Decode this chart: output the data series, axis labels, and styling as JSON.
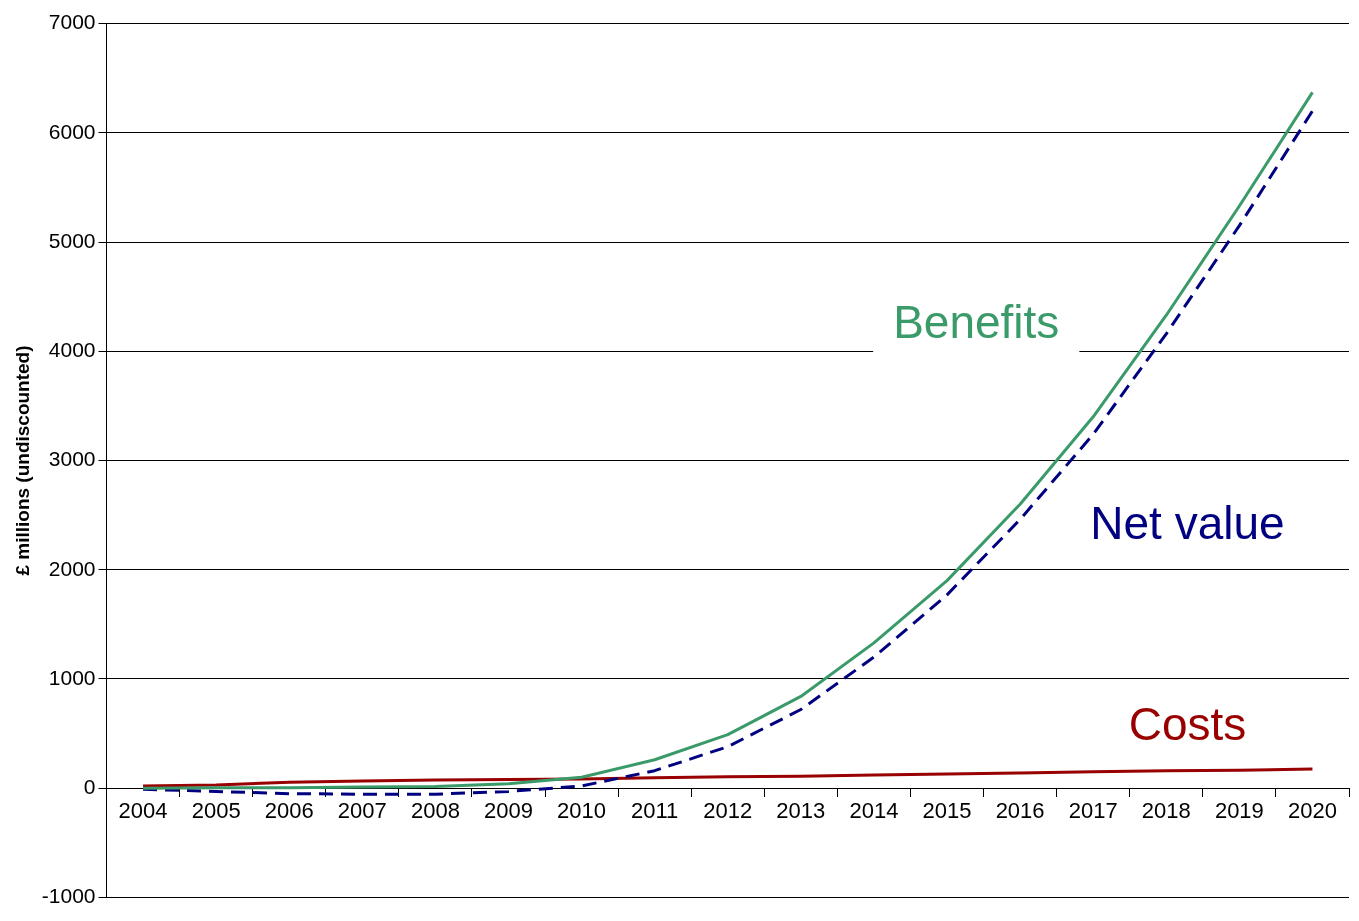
{
  "chart_data": {
    "type": "line",
    "ylabel": "£ millions (undiscounted)",
    "categories": [
      "2004",
      "2005",
      "2006",
      "2007",
      "2008",
      "2009",
      "2010",
      "2011",
      "2012",
      "2013",
      "2014",
      "2015",
      "2016",
      "2017",
      "2018",
      "2019",
      "2020"
    ],
    "series": [
      {
        "name": "Benefits",
        "color": "#3a9a6a",
        "line_style": "solid",
        "values": [
          0,
          5,
          5,
          10,
          15,
          40,
          100,
          260,
          490,
          840,
          1330,
          1900,
          2600,
          3400,
          4330,
          5330,
          6370
        ]
      },
      {
        "name": "Net value",
        "color": "#000080",
        "line_style": "dashed",
        "values": [
          -10,
          -30,
          -50,
          -55,
          -55,
          -30,
          20,
          160,
          380,
          720,
          1200,
          1770,
          2460,
          3240,
          4160,
          5150,
          6200
        ]
      },
      {
        "name": "Costs",
        "color": "#990000",
        "line_style": "solid",
        "values": [
          20,
          30,
          55,
          65,
          75,
          80,
          85,
          95,
          105,
          110,
          120,
          130,
          140,
          150,
          160,
          165,
          175
        ]
      }
    ],
    "ylim": [
      -1000,
      7000
    ],
    "yticks": [
      -1000,
      0,
      1000,
      2000,
      3000,
      4000,
      5000,
      6000,
      7000
    ],
    "grid": "y",
    "legend": false,
    "marker": "none"
  }
}
